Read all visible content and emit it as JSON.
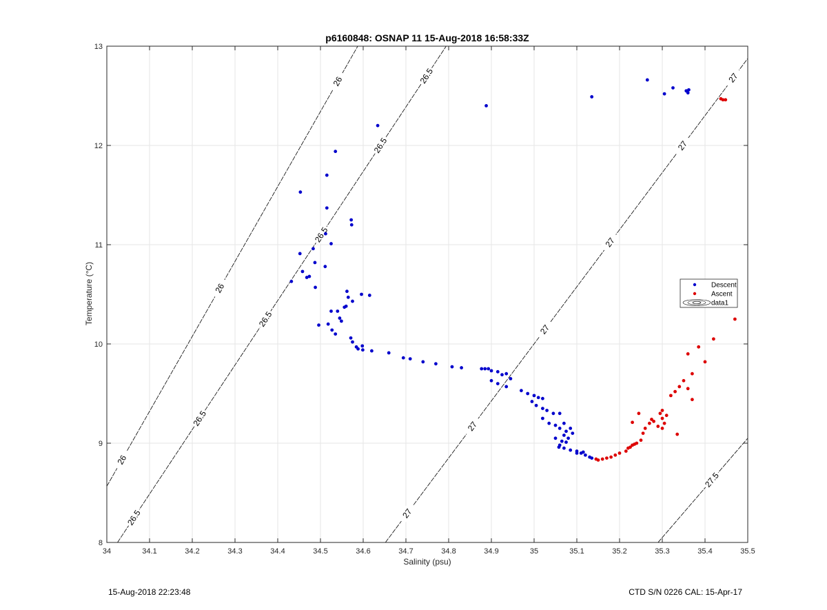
{
  "footer": {
    "left": "15-Aug-2018 22:23:48",
    "right": "CTD S/N 0226  CAL: 15-Apr-17"
  },
  "chart_data": {
    "type": "scatter",
    "title": "p6160848: OSNAP 11 15-Aug-2018 16:58:33Z",
    "xlabel": "Salinity (psu)",
    "ylabel": "Temperature (°C)",
    "xlim": [
      34,
      35.5
    ],
    "ylim": [
      8,
      13
    ],
    "x_ticks": [
      "34",
      "34.1",
      "34.2",
      "34.3",
      "34.4",
      "34.5",
      "34.6",
      "34.7",
      "34.8",
      "34.9",
      "35",
      "35.1",
      "35.2",
      "35.3",
      "35.4",
      "35.5"
    ],
    "y_ticks": [
      "8",
      "9",
      "10",
      "11",
      "12",
      "13"
    ],
    "grid": true,
    "legend": {
      "placement": "right",
      "entries": [
        "Descent",
        "Ascent",
        "data1"
      ]
    },
    "colors": {
      "descent": "#0000cc",
      "ascent": "#dd0000",
      "contour": "#000000",
      "grid": "#e6e6e6"
    },
    "series": [
      {
        "name": "Descent",
        "points": [
          [
            34.888,
            12.4
          ],
          [
            34.634,
            12.2
          ],
          [
            34.535,
            11.94
          ],
          [
            34.453,
            11.53
          ],
          [
            34.515,
            11.7
          ],
          [
            34.515,
            11.37
          ],
          [
            34.572,
            11.25
          ],
          [
            34.573,
            11.2
          ],
          [
            34.512,
            11.11
          ],
          [
            34.525,
            11.01
          ],
          [
            34.483,
            10.96
          ],
          [
            34.452,
            10.91
          ],
          [
            34.487,
            10.82
          ],
          [
            34.458,
            10.73
          ],
          [
            34.474,
            10.68
          ],
          [
            34.511,
            10.78
          ],
          [
            34.468,
            10.67
          ],
          [
            34.432,
            10.63
          ],
          [
            34.488,
            10.57
          ],
          [
            34.562,
            10.53
          ],
          [
            34.565,
            10.47
          ],
          [
            34.575,
            10.43
          ],
          [
            34.596,
            10.5
          ],
          [
            34.615,
            10.49
          ],
          [
            34.556,
            10.37
          ],
          [
            34.54,
            10.33
          ],
          [
            34.525,
            10.33
          ],
          [
            34.56,
            10.38
          ],
          [
            34.545,
            10.26
          ],
          [
            34.549,
            10.23
          ],
          [
            34.496,
            10.19
          ],
          [
            34.518,
            10.2
          ],
          [
            34.527,
            10.14
          ],
          [
            34.535,
            10.1
          ],
          [
            34.571,
            10.06
          ],
          [
            34.575,
            10.02
          ],
          [
            34.584,
            9.97
          ],
          [
            34.588,
            9.95
          ],
          [
            34.599,
            9.94
          ],
          [
            34.598,
            9.98
          ],
          [
            34.62,
            9.93
          ],
          [
            34.66,
            9.91
          ],
          [
            34.694,
            9.86
          ],
          [
            34.71,
            9.85
          ],
          [
            34.74,
            9.82
          ],
          [
            34.77,
            9.8
          ],
          [
            34.808,
            9.77
          ],
          [
            34.83,
            9.76
          ],
          [
            34.877,
            9.75
          ],
          [
            34.885,
            9.75
          ],
          [
            34.893,
            9.75
          ],
          [
            34.9,
            9.73
          ],
          [
            34.915,
            9.72
          ],
          [
            34.925,
            9.69
          ],
          [
            34.935,
            9.7
          ],
          [
            34.945,
            9.65
          ],
          [
            34.9,
            9.63
          ],
          [
            34.915,
            9.6
          ],
          [
            34.935,
            9.57
          ],
          [
            34.97,
            9.53
          ],
          [
            34.985,
            9.5
          ],
          [
            35.0,
            9.48
          ],
          [
            35.01,
            9.46
          ],
          [
            35.02,
            9.45
          ],
          [
            34.995,
            9.42
          ],
          [
            35.005,
            9.38
          ],
          [
            35.02,
            9.35
          ],
          [
            35.03,
            9.33
          ],
          [
            35.045,
            9.3
          ],
          [
            35.06,
            9.3
          ],
          [
            35.02,
            9.25
          ],
          [
            35.035,
            9.2
          ],
          [
            35.05,
            9.18
          ],
          [
            35.06,
            9.15
          ],
          [
            35.075,
            9.12
          ],
          [
            35.085,
            9.15
          ],
          [
            35.07,
            9.08
          ],
          [
            35.08,
            9.05
          ],
          [
            35.075,
            9.01
          ],
          [
            35.06,
            8.98
          ],
          [
            35.07,
            8.95
          ],
          [
            35.085,
            8.93
          ],
          [
            35.1,
            8.92
          ],
          [
            35.11,
            8.9
          ],
          [
            35.12,
            8.88
          ],
          [
            35.13,
            8.86
          ],
          [
            35.135,
            8.85
          ],
          [
            35.07,
            9.2
          ],
          [
            35.05,
            9.05
          ],
          [
            35.058,
            8.96
          ],
          [
            35.09,
            9.1
          ],
          [
            35.065,
            9.02
          ],
          [
            35.1,
            8.9
          ],
          [
            35.115,
            8.91
          ],
          [
            35.135,
            12.49
          ],
          [
            35.265,
            12.66
          ],
          [
            35.305,
            12.52
          ],
          [
            35.325,
            12.58
          ],
          [
            35.356,
            12.55
          ],
          [
            35.36,
            12.53
          ],
          [
            35.362,
            12.56
          ]
        ]
      },
      {
        "name": "Ascent",
        "points": [
          [
            35.437,
            12.47
          ],
          [
            35.442,
            12.46
          ],
          [
            35.448,
            12.46
          ],
          [
            35.145,
            8.84
          ],
          [
            35.15,
            8.83
          ],
          [
            35.16,
            8.84
          ],
          [
            35.17,
            8.85
          ],
          [
            35.18,
            8.86
          ],
          [
            35.19,
            8.88
          ],
          [
            35.2,
            8.9
          ],
          [
            35.215,
            8.92
          ],
          [
            35.22,
            8.95
          ],
          [
            35.23,
            8.98
          ],
          [
            35.24,
            9.0
          ],
          [
            35.25,
            9.03
          ],
          [
            35.255,
            9.1
          ],
          [
            35.26,
            9.15
          ],
          [
            35.27,
            9.2
          ],
          [
            35.28,
            9.22
          ],
          [
            35.29,
            9.17
          ],
          [
            35.3,
            9.15
          ],
          [
            35.305,
            9.2
          ],
          [
            35.3,
            9.25
          ],
          [
            35.31,
            9.28
          ],
          [
            35.3,
            9.33
          ],
          [
            35.32,
            9.48
          ],
          [
            35.33,
            9.52
          ],
          [
            35.34,
            9.57
          ],
          [
            35.35,
            9.63
          ],
          [
            35.36,
            9.55
          ],
          [
            35.37,
            9.7
          ],
          [
            35.385,
            9.97
          ],
          [
            35.4,
            9.82
          ],
          [
            35.42,
            10.05
          ],
          [
            35.47,
            10.25
          ],
          [
            35.36,
            9.9
          ],
          [
            35.37,
            9.44
          ],
          [
            35.335,
            9.09
          ],
          [
            35.245,
            9.3
          ],
          [
            35.23,
            9.21
          ],
          [
            35.275,
            9.24
          ],
          [
            35.295,
            9.3
          ],
          [
            35.235,
            8.99
          ],
          [
            35.225,
            8.96
          ]
        ]
      }
    ],
    "contours": [
      {
        "level": 26,
        "labels": [
          "26",
          "26",
          "26"
        ]
      },
      {
        "level": 26.5,
        "labels": [
          "26.5",
          "26.5",
          "26.5",
          "26.5",
          "26.5",
          "26.5"
        ]
      },
      {
        "level": 27,
        "labels": [
          "27",
          "27",
          "27",
          "27",
          "27",
          "27"
        ]
      },
      {
        "level": 27.5,
        "labels": [
          "27.5"
        ]
      }
    ]
  }
}
